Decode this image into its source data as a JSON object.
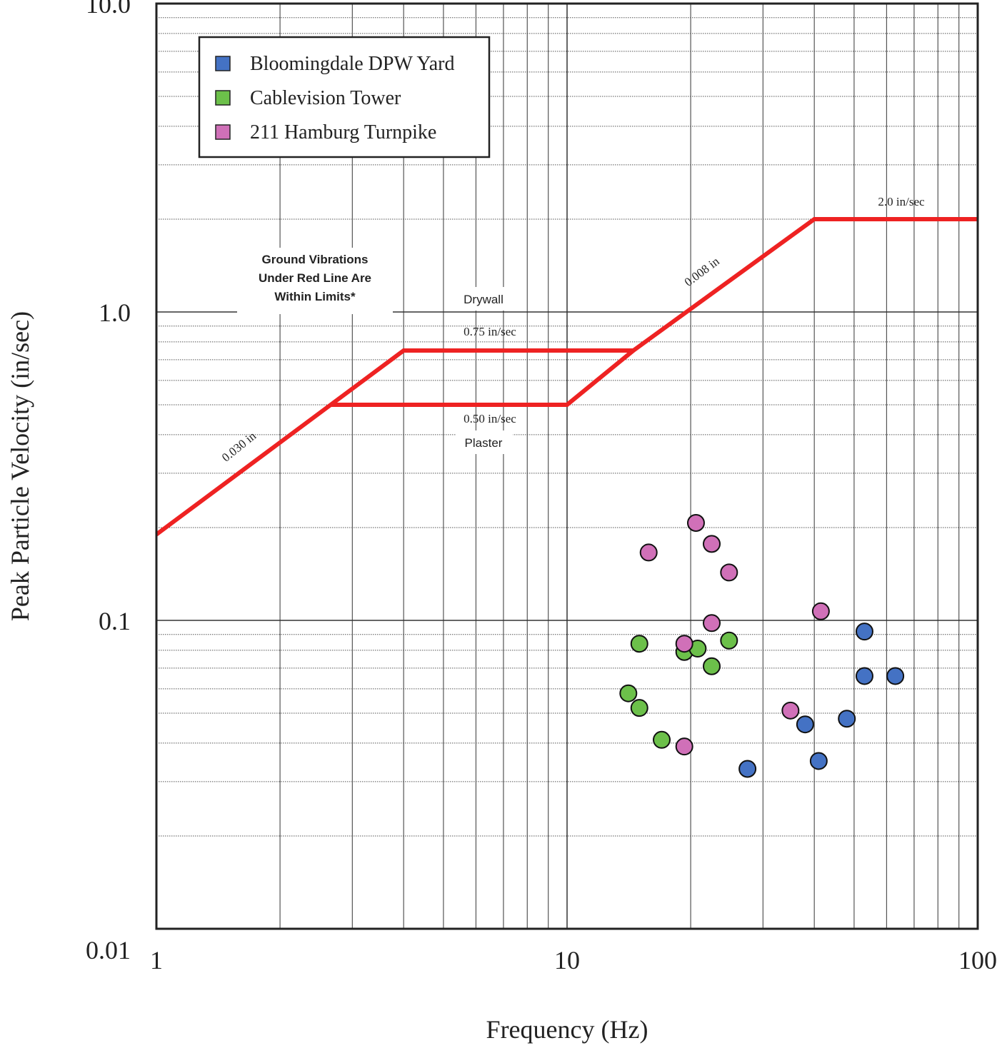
{
  "chart_data": {
    "type": "scatter",
    "xlabel": "Frequency (Hz)",
    "ylabel": "Peak Particle Velocity (in/sec)",
    "x_scale": "log",
    "y_scale": "log",
    "xlim": [
      1,
      100
    ],
    "ylim": [
      0.01,
      10
    ],
    "x_ticks": [
      {
        "value": 1,
        "label": "1"
      },
      {
        "value": 10,
        "label": "10"
      },
      {
        "value": 100,
        "label": "100"
      }
    ],
    "y_ticks": [
      {
        "value": 0.01,
        "label": "0.01"
      },
      {
        "value": 0.1,
        "label": "0.1"
      },
      {
        "value": 1,
        "label": "1.0"
      },
      {
        "value": 10,
        "label": "10.0"
      }
    ],
    "grid": true,
    "legend_position": "top-left",
    "series": [
      {
        "name": "Bloomingdale DPW Yard",
        "color": "#4472c4",
        "points": [
          {
            "x": 27.5,
            "y": 0.033
          },
          {
            "x": 38,
            "y": 0.046
          },
          {
            "x": 41,
            "y": 0.035
          },
          {
            "x": 48,
            "y": 0.048
          },
          {
            "x": 53,
            "y": 0.092
          },
          {
            "x": 53,
            "y": 0.066
          },
          {
            "x": 63,
            "y": 0.066
          }
        ]
      },
      {
        "name": "Cablevision Tower",
        "color": "#6cc04a",
        "points": [
          {
            "x": 14.1,
            "y": 0.058
          },
          {
            "x": 15,
            "y": 0.084
          },
          {
            "x": 15,
            "y": 0.052
          },
          {
            "x": 17,
            "y": 0.041
          },
          {
            "x": 19.3,
            "y": 0.079
          },
          {
            "x": 20.8,
            "y": 0.081
          },
          {
            "x": 22.5,
            "y": 0.071
          },
          {
            "x": 24.8,
            "y": 0.086
          }
        ]
      },
      {
        "name": "211 Hamburg Turnpike",
        "color": "#d070b8",
        "points": [
          {
            "x": 15.8,
            "y": 0.166
          },
          {
            "x": 19.3,
            "y": 0.084
          },
          {
            "x": 19.3,
            "y": 0.039
          },
          {
            "x": 20.6,
            "y": 0.207
          },
          {
            "x": 22.5,
            "y": 0.177
          },
          {
            "x": 22.5,
            "y": 0.098
          },
          {
            "x": 24.8,
            "y": 0.143
          },
          {
            "x": 35,
            "y": 0.051
          },
          {
            "x": 41.5,
            "y": 0.107
          }
        ]
      }
    ],
    "limit_lines": [
      {
        "name": "Drywall",
        "color": "#ee2222",
        "points": [
          [
            1,
            0.19
          ],
          [
            4,
            0.75
          ],
          [
            14.5,
            0.75
          ],
          [
            40,
            2.0
          ],
          [
            100,
            2.0
          ]
        ]
      },
      {
        "name": "Plaster",
        "color": "#ee2222",
        "points": [
          [
            2.65,
            0.5
          ],
          [
            10,
            0.5
          ],
          [
            14.5,
            0.75
          ]
        ]
      }
    ],
    "annotations": {
      "region_note": [
        "Ground Vibrations",
        "Under Red Line Are",
        "Within Limits*"
      ],
      "drywall": "Drywall",
      "drywall_level": "0.75 in/sec",
      "plaster_level": "0.50 in/sec",
      "plaster": "Plaster",
      "max_level": "2.0 in/sec",
      "disp_low": "0.030 in",
      "disp_high": "0.008 in"
    }
  }
}
